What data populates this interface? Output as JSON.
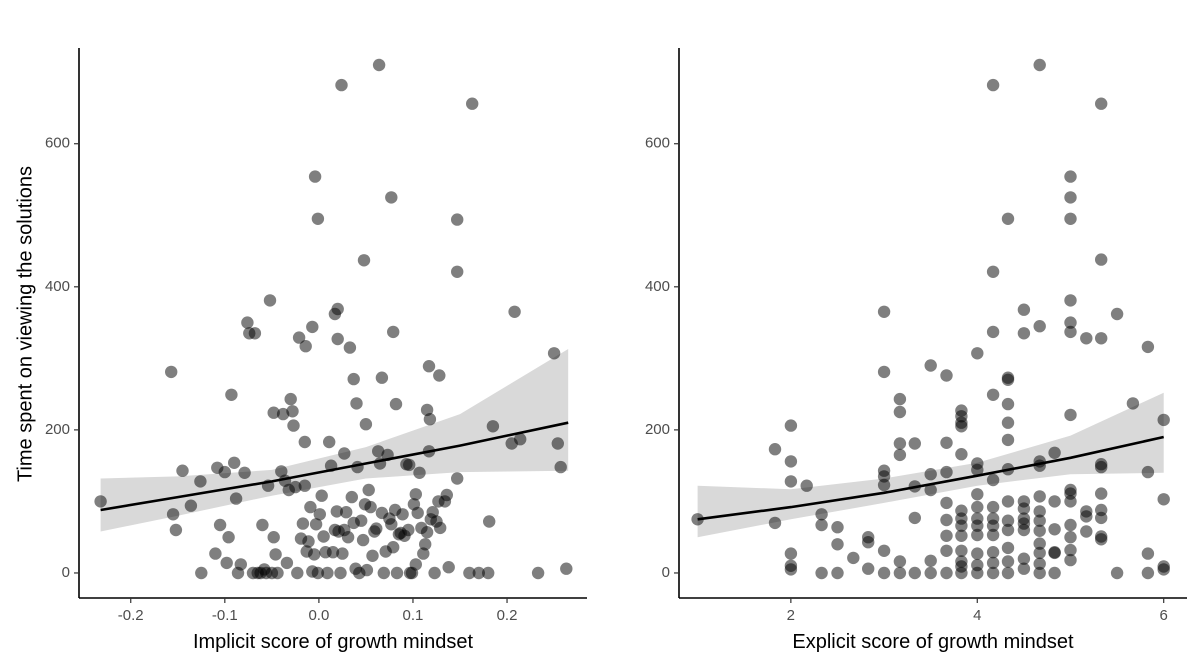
{
  "ylabel": "Time spent on viewing the solutions",
  "chart_data": [
    {
      "type": "scatter",
      "xlabel": "Implicit score of growth mindset",
      "ylabel": "Time spent on viewing the solutions",
      "xlim": [
        -0.255,
        0.285
      ],
      "ylim": [
        -35,
        745
      ],
      "xticks": [
        -0.2,
        -0.1,
        0.0,
        0.1,
        0.2
      ],
      "xtick_labels": [
        "-0.2",
        "-0.1",
        "0.0",
        "0.1",
        "0.2"
      ],
      "yticks": [
        0,
        200,
        400,
        600
      ],
      "ytick_labels": [
        "0",
        "200",
        "400",
        "600"
      ],
      "grid": false,
      "point_color": "#000000",
      "point_opacity": 0.5,
      "ribbon_color": "#d9d9d9",
      "fit_color": "#000000",
      "fit": {
        "x": [
          -0.232,
          -0.15,
          -0.05,
          0.05,
          0.15,
          0.265
        ],
        "y": [
          88,
          106,
          128,
          153,
          178,
          210
        ],
        "lower": [
          58,
          80,
          108,
          132,
          141,
          143
        ],
        "upper": [
          132,
          135,
          144,
          176,
          222,
          313
        ]
      },
      "points": [
        [
          -0.232,
          100
        ],
        [
          -0.157,
          281
        ],
        [
          -0.155,
          82
        ],
        [
          -0.152,
          60
        ],
        [
          -0.145,
          143
        ],
        [
          -0.136,
          94
        ],
        [
          -0.126,
          128
        ],
        [
          -0.125,
          0
        ],
        [
          -0.11,
          27
        ],
        [
          -0.108,
          147
        ],
        [
          -0.105,
          67
        ],
        [
          -0.1,
          141
        ],
        [
          -0.098,
          14
        ],
        [
          -0.096,
          50
        ],
        [
          -0.093,
          249
        ],
        [
          -0.09,
          154
        ],
        [
          -0.088,
          104
        ],
        [
          -0.086,
          0
        ],
        [
          -0.083,
          12
        ],
        [
          -0.079,
          140
        ],
        [
          -0.076,
          350
        ],
        [
          -0.074,
          335
        ],
        [
          -0.07,
          0
        ],
        [
          -0.068,
          335
        ],
        [
          -0.065,
          0
        ],
        [
          -0.062,
          0
        ],
        [
          -0.06,
          67
        ],
        [
          -0.058,
          5
        ],
        [
          -0.056,
          0
        ],
        [
          -0.054,
          122
        ],
        [
          -0.052,
          381
        ],
        [
          -0.05,
          0
        ],
        [
          -0.048,
          50
        ],
        [
          -0.046,
          26
        ],
        [
          -0.044,
          0
        ],
        [
          -0.04,
          142
        ],
        [
          -0.038,
          222
        ],
        [
          -0.036,
          129
        ],
        [
          -0.034,
          14
        ],
        [
          -0.032,
          116
        ],
        [
          -0.03,
          243
        ],
        [
          -0.028,
          226
        ],
        [
          -0.027,
          206
        ],
        [
          -0.025,
          120
        ],
        [
          -0.023,
          0
        ],
        [
          -0.021,
          329
        ],
        [
          -0.019,
          48
        ],
        [
          -0.017,
          69
        ],
        [
          -0.015,
          122
        ],
        [
          -0.013,
          30
        ],
        [
          -0.011,
          44
        ],
        [
          -0.009,
          92
        ],
        [
          -0.007,
          2
        ],
        [
          -0.005,
          26
        ],
        [
          -0.003,
          68
        ],
        [
          -0.001,
          0
        ],
        [
          0.001,
          82
        ],
        [
          0.003,
          108
        ],
        [
          0.005,
          51
        ],
        [
          0.007,
          29
        ],
        [
          0.009,
          0
        ],
        [
          0.011,
          183
        ],
        [
          0.013,
          150
        ],
        [
          0.015,
          29
        ],
        [
          0.017,
          60
        ],
        [
          0.019,
          86
        ],
        [
          0.021,
          58
        ],
        [
          0.023,
          0
        ],
        [
          0.025,
          27
        ],
        [
          0.027,
          60
        ],
        [
          0.029,
          85
        ],
        [
          0.031,
          50
        ],
        [
          0.033,
          315
        ],
        [
          0.035,
          106
        ],
        [
          0.037,
          70
        ],
        [
          0.039,
          6
        ],
        [
          0.041,
          148
        ],
        [
          0.043,
          0
        ],
        [
          0.045,
          73
        ],
        [
          0.047,
          46
        ],
        [
          0.049,
          96
        ],
        [
          0.051,
          4
        ],
        [
          0.053,
          116
        ],
        [
          0.055,
          92
        ],
        [
          0.057,
          24
        ],
        [
          0.059,
          58
        ],
        [
          0.061,
          62
        ],
        [
          0.063,
          170
        ],
        [
          0.065,
          153
        ],
        [
          0.067,
          84
        ],
        [
          0.069,
          0
        ],
        [
          0.071,
          30
        ],
        [
          0.073,
          165
        ],
        [
          0.075,
          76
        ],
        [
          0.077,
          68
        ],
        [
          0.079,
          36
        ],
        [
          0.081,
          88
        ],
        [
          0.083,
          0
        ],
        [
          0.085,
          54
        ],
        [
          0.087,
          56
        ],
        [
          0.089,
          82
        ],
        [
          0.091,
          52
        ],
        [
          0.093,
          152
        ],
        [
          0.095,
          60
        ],
        [
          0.097,
          0
        ],
        [
          0.099,
          0
        ],
        [
          0.101,
          96
        ],
        [
          0.103,
          110
        ],
        [
          0.105,
          84
        ],
        [
          0.107,
          140
        ],
        [
          0.109,
          63
        ],
        [
          0.111,
          27
        ],
        [
          0.113,
          40
        ],
        [
          0.115,
          57
        ],
        [
          0.117,
          170
        ],
        [
          0.119,
          75
        ],
        [
          0.121,
          85
        ],
        [
          0.123,
          0
        ],
        [
          0.125,
          72
        ],
        [
          0.127,
          100
        ],
        [
          0.129,
          63
        ],
        [
          -0.004,
          554
        ],
        [
          0.024,
          682
        ],
        [
          0.064,
          710
        ],
        [
          0.163,
          656
        ],
        [
          0.077,
          525
        ],
        [
          -0.001,
          495
        ],
        [
          0.147,
          494
        ],
        [
          0.048,
          437
        ],
        [
          0.147,
          421
        ],
        [
          0.02,
          369
        ],
        [
          0.208,
          365
        ],
        [
          0.017,
          362
        ],
        [
          -0.007,
          344
        ],
        [
          0.079,
          337
        ],
        [
          -0.014,
          317
        ],
        [
          0.02,
          327
        ],
        [
          0.25,
          307
        ],
        [
          0.117,
          289
        ],
        [
          0.128,
          276
        ],
        [
          0.067,
          273
        ],
        [
          0.037,
          271
        ],
        [
          0.04,
          237
        ],
        [
          0.082,
          236
        ],
        [
          -0.048,
          224
        ],
        [
          0.115,
          228
        ],
        [
          0.118,
          215
        ],
        [
          0.05,
          208
        ],
        [
          0.185,
          205
        ],
        [
          -0.015,
          183
        ],
        [
          0.214,
          187
        ],
        [
          0.205,
          181
        ],
        [
          0.254,
          181
        ],
        [
          0.027,
          167
        ],
        [
          0.096,
          151
        ],
        [
          0.257,
          148
        ],
        [
          0.147,
          132
        ],
        [
          0.181,
          72
        ],
        [
          0.136,
          109
        ],
        [
          0.134,
          100
        ],
        [
          0.17,
          0
        ],
        [
          0.18,
          0
        ],
        [
          0.233,
          0
        ],
        [
          0.263,
          6
        ],
        [
          0.138,
          8
        ],
        [
          0.16,
          0
        ],
        [
          0.103,
          12
        ]
      ]
    },
    {
      "type": "scatter",
      "xlabel": "Explicit score of growth mindset",
      "ylabel": "",
      "xlim": [
        0.8,
        6.25
      ],
      "ylim": [
        -35,
        745
      ],
      "xticks": [
        2,
        4,
        6
      ],
      "xtick_labels": [
        "2",
        "4",
        "6"
      ],
      "yticks": [
        0,
        200,
        400,
        600
      ],
      "ytick_labels": [
        "0",
        "200",
        "400",
        "600"
      ],
      "grid": false,
      "point_color": "#000000",
      "point_opacity": 0.5,
      "ribbon_color": "#d9d9d9",
      "fit_color": "#000000",
      "fit": {
        "x": [
          1.0,
          2.0,
          3.0,
          4.0,
          5.0,
          6.0
        ],
        "y": [
          75,
          92,
          112,
          136,
          161,
          190
        ],
        "lower": [
          50,
          75,
          98,
          122,
          138,
          140
        ],
        "upper": [
          122,
          117,
          132,
          154,
          192,
          252
        ]
      },
      "points": [
        [
          1.0,
          75
        ],
        [
          1.83,
          70
        ],
        [
          1.83,
          173
        ],
        [
          2.0,
          206
        ],
        [
          2.0,
          156
        ],
        [
          2.0,
          128
        ],
        [
          2.0,
          27
        ],
        [
          2.0,
          10
        ],
        [
          2.0,
          5
        ],
        [
          2.17,
          122
        ],
        [
          2.33,
          82
        ],
        [
          2.33,
          67
        ],
        [
          2.33,
          0
        ],
        [
          2.5,
          64
        ],
        [
          2.5,
          40
        ],
        [
          2.5,
          0
        ],
        [
          2.67,
          21
        ],
        [
          2.83,
          50
        ],
        [
          2.83,
          43
        ],
        [
          2.83,
          6
        ],
        [
          3.0,
          365
        ],
        [
          3.0,
          281
        ],
        [
          3.0,
          143
        ],
        [
          3.0,
          135
        ],
        [
          3.0,
          123
        ],
        [
          3.0,
          31
        ],
        [
          3.0,
          0
        ],
        [
          3.17,
          243
        ],
        [
          3.17,
          225
        ],
        [
          3.17,
          181
        ],
        [
          3.17,
          165
        ],
        [
          3.17,
          16
        ],
        [
          3.17,
          0
        ],
        [
          3.33,
          181
        ],
        [
          3.33,
          121
        ],
        [
          3.33,
          77
        ],
        [
          3.33,
          0
        ],
        [
          3.5,
          290
        ],
        [
          3.5,
          138
        ],
        [
          3.5,
          116
        ],
        [
          3.5,
          17
        ],
        [
          3.5,
          0
        ],
        [
          3.67,
          276
        ],
        [
          3.67,
          182
        ],
        [
          3.67,
          141
        ],
        [
          3.67,
          98
        ],
        [
          3.67,
          74
        ],
        [
          3.67,
          52
        ],
        [
          3.67,
          31
        ],
        [
          3.67,
          0
        ],
        [
          3.83,
          227
        ],
        [
          3.83,
          219
        ],
        [
          3.83,
          210
        ],
        [
          3.83,
          205
        ],
        [
          3.83,
          166
        ],
        [
          3.83,
          87
        ],
        [
          3.83,
          76
        ],
        [
          3.83,
          66
        ],
        [
          3.83,
          52
        ],
        [
          3.83,
          31
        ],
        [
          3.83,
          16
        ],
        [
          3.83,
          9
        ],
        [
          3.83,
          0
        ],
        [
          4.0,
          307
        ],
        [
          4.0,
          153
        ],
        [
          4.0,
          144
        ],
        [
          4.0,
          110
        ],
        [
          4.0,
          92
        ],
        [
          4.0,
          76
        ],
        [
          4.0,
          66
        ],
        [
          4.0,
          53
        ],
        [
          4.0,
          27
        ],
        [
          4.0,
          11
        ],
        [
          4.0,
          0
        ],
        [
          4.17,
          682
        ],
        [
          4.17,
          421
        ],
        [
          4.17,
          337
        ],
        [
          4.17,
          249
        ],
        [
          4.17,
          130
        ],
        [
          4.17,
          92
        ],
        [
          4.17,
          76
        ],
        [
          4.17,
          66
        ],
        [
          4.17,
          53
        ],
        [
          4.17,
          29
        ],
        [
          4.17,
          14
        ],
        [
          4.17,
          0
        ],
        [
          4.33,
          495
        ],
        [
          4.33,
          273
        ],
        [
          4.33,
          270
        ],
        [
          4.33,
          236
        ],
        [
          4.33,
          210
        ],
        [
          4.33,
          186
        ],
        [
          4.33,
          145
        ],
        [
          4.33,
          100
        ],
        [
          4.33,
          73
        ],
        [
          4.33,
          60
        ],
        [
          4.33,
          35
        ],
        [
          4.33,
          16
        ],
        [
          4.33,
          0
        ],
        [
          4.5,
          368
        ],
        [
          4.5,
          335
        ],
        [
          4.5,
          100
        ],
        [
          4.5,
          90
        ],
        [
          4.5,
          76
        ],
        [
          4.5,
          69
        ],
        [
          4.5,
          60
        ],
        [
          4.5,
          20
        ],
        [
          4.5,
          6
        ],
        [
          4.67,
          710
        ],
        [
          4.67,
          345
        ],
        [
          4.67,
          156
        ],
        [
          4.67,
          150
        ],
        [
          4.67,
          107
        ],
        [
          4.67,
          86
        ],
        [
          4.67,
          73
        ],
        [
          4.67,
          59
        ],
        [
          4.67,
          41
        ],
        [
          4.67,
          28
        ],
        [
          4.67,
          13
        ],
        [
          4.67,
          0
        ],
        [
          4.83,
          168
        ],
        [
          4.83,
          100
        ],
        [
          4.83,
          61
        ],
        [
          4.83,
          29
        ],
        [
          4.83,
          28
        ],
        [
          4.83,
          0
        ],
        [
          5.0,
          554
        ],
        [
          5.0,
          525
        ],
        [
          5.0,
          495
        ],
        [
          5.0,
          381
        ],
        [
          5.0,
          350
        ],
        [
          5.0,
          337
        ],
        [
          5.0,
          221
        ],
        [
          5.0,
          116
        ],
        [
          5.0,
          111
        ],
        [
          5.0,
          100
        ],
        [
          5.0,
          67
        ],
        [
          5.0,
          50
        ],
        [
          5.0,
          32
        ],
        [
          5.0,
          18
        ],
        [
          5.17,
          328
        ],
        [
          5.17,
          86
        ],
        [
          5.17,
          79
        ],
        [
          5.17,
          58
        ],
        [
          5.33,
          656
        ],
        [
          5.33,
          438
        ],
        [
          5.33,
          328
        ],
        [
          5.33,
          152
        ],
        [
          5.33,
          148
        ],
        [
          5.33,
          111
        ],
        [
          5.33,
          88
        ],
        [
          5.33,
          77
        ],
        [
          5.33,
          51
        ],
        [
          5.33,
          47
        ],
        [
          5.5,
          362
        ],
        [
          5.5,
          0
        ],
        [
          5.67,
          237
        ],
        [
          5.83,
          316
        ],
        [
          5.83,
          141
        ],
        [
          5.83,
          27
        ],
        [
          5.83,
          0
        ],
        [
          6.0,
          214
        ],
        [
          6.0,
          103
        ],
        [
          6.0,
          9
        ],
        [
          6.0,
          5
        ]
      ]
    }
  ]
}
